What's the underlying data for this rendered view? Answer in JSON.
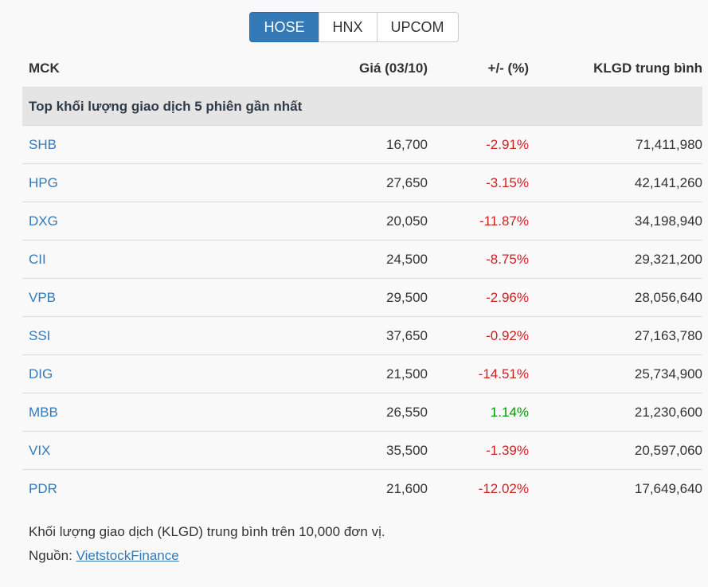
{
  "tabs": [
    {
      "label": "HOSE",
      "active": true
    },
    {
      "label": "HNX",
      "active": false
    },
    {
      "label": "UPCOM",
      "active": false
    }
  ],
  "table": {
    "columns": [
      "MCK",
      "Giá (03/10)",
      "+/- (%)",
      "KLGD trung bình"
    ],
    "section_title": "Top khối lượng giao dịch 5 phiên gần nhất",
    "rows": [
      {
        "code": "SHB",
        "price": "16,700",
        "change": "-2.91%",
        "volume": "71,411,980",
        "direction": "down"
      },
      {
        "code": "HPG",
        "price": "27,650",
        "change": "-3.15%",
        "volume": "42,141,260",
        "direction": "down"
      },
      {
        "code": "DXG",
        "price": "20,050",
        "change": "-11.87%",
        "volume": "34,198,940",
        "direction": "down"
      },
      {
        "code": "CII",
        "price": "24,500",
        "change": "-8.75%",
        "volume": "29,321,200",
        "direction": "down"
      },
      {
        "code": "VPB",
        "price": "29,500",
        "change": "-2.96%",
        "volume": "28,056,640",
        "direction": "down"
      },
      {
        "code": "SSI",
        "price": "37,650",
        "change": "-0.92%",
        "volume": "27,163,780",
        "direction": "down"
      },
      {
        "code": "DIG",
        "price": "21,500",
        "change": "-14.51%",
        "volume": "25,734,900",
        "direction": "down"
      },
      {
        "code": "MBB",
        "price": "26,550",
        "change": "1.14%",
        "volume": "21,230,600",
        "direction": "up"
      },
      {
        "code": "VIX",
        "price": "35,500",
        "change": "-1.39%",
        "volume": "20,597,060",
        "direction": "down"
      },
      {
        "code": "PDR",
        "price": "21,600",
        "change": "-12.02%",
        "volume": "17,649,640",
        "direction": "down"
      }
    ]
  },
  "footer": {
    "note": "Khối lượng giao dịch (KLGD) trung bình trên 10,000 đơn vị.",
    "source_label": "Nguồn:",
    "source_link": "VietstockFinance"
  },
  "colors": {
    "accent": "#337ab7",
    "negative": "#cb2227",
    "positive": "#009900",
    "section_bg": "#e5e5e5",
    "border": "#dddddd",
    "page_bg": "#f9f9f9"
  }
}
